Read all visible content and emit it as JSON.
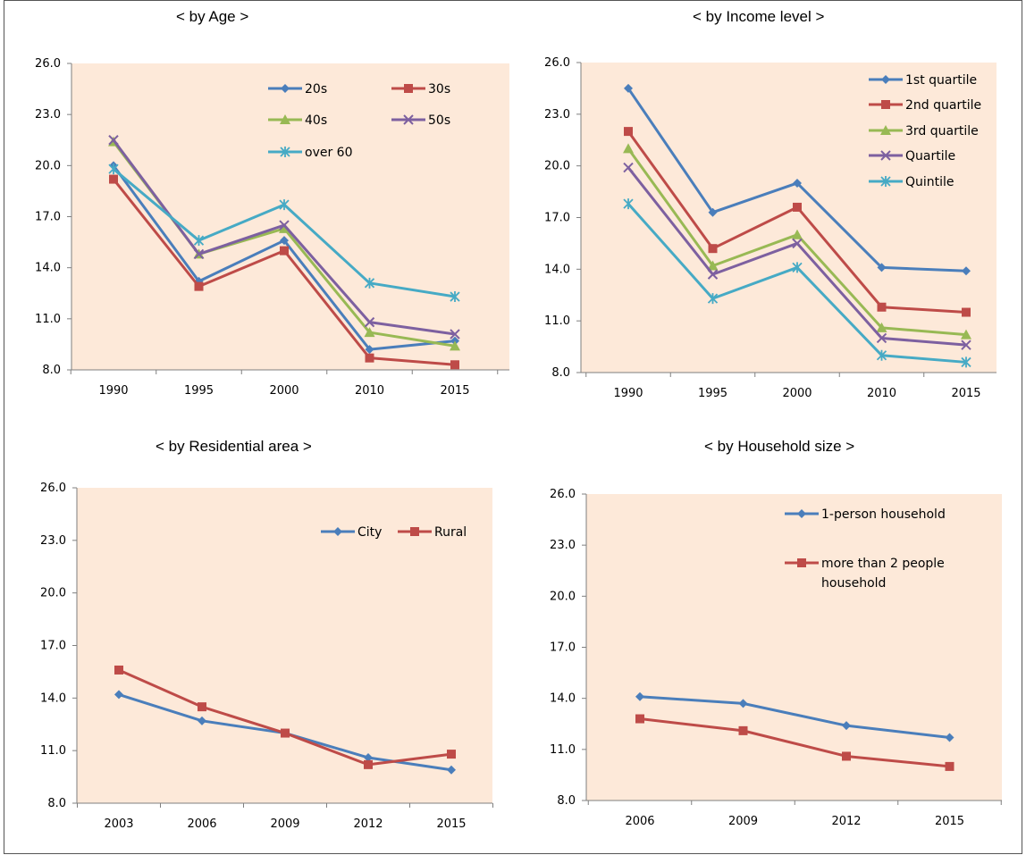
{
  "page": {
    "title": ""
  },
  "chart_data": [
    {
      "type": "line",
      "title": "< by Age >",
      "xlabel": "",
      "ylabel": "",
      "categories": [
        "1990",
        "1995",
        "2000",
        "2010",
        "2015"
      ],
      "ylim": [
        8.0,
        26.0
      ],
      "yticks": [
        "8.0",
        "11.0",
        "14.0",
        "17.0",
        "20.0",
        "23.0",
        "26.0"
      ],
      "grid": false,
      "legend": "top-right",
      "series": [
        {
          "name": "20s",
          "values": [
            20.0,
            13.2,
            15.6,
            9.2,
            9.7
          ],
          "color": "#4a7ebb",
          "marker": "diamond"
        },
        {
          "name": "30s",
          "values": [
            19.2,
            12.9,
            15.0,
            8.7,
            8.3
          ],
          "color": "#be4b48",
          "marker": "square"
        },
        {
          "name": "40s",
          "values": [
            21.4,
            14.8,
            16.3,
            10.2,
            9.4
          ],
          "color": "#98b954",
          "marker": "triangle"
        },
        {
          "name": "50s",
          "values": [
            21.5,
            14.8,
            16.5,
            10.8,
            10.1
          ],
          "color": "#7d60a0",
          "marker": "x"
        },
        {
          "name": "over 60",
          "values": [
            19.8,
            15.6,
            17.7,
            13.1,
            12.3
          ],
          "color": "#46aac5",
          "marker": "star"
        }
      ]
    },
    {
      "type": "line",
      "title": "< by Income level >",
      "xlabel": "",
      "ylabel": "",
      "categories": [
        "1990",
        "1995",
        "2000",
        "2010",
        "2015"
      ],
      "ylim": [
        8.0,
        26.0
      ],
      "yticks": [
        "8.0",
        "11.0",
        "14.0",
        "17.0",
        "20.0",
        "23.0",
        "26.0"
      ],
      "grid": false,
      "legend": "top-right",
      "series": [
        {
          "name": "1st quartile",
          "values": [
            24.5,
            17.3,
            19.0,
            14.1,
            13.9
          ],
          "color": "#4a7ebb",
          "marker": "diamond"
        },
        {
          "name": "2nd quartile",
          "values": [
            22.0,
            15.2,
            17.6,
            11.8,
            11.5
          ],
          "color": "#be4b48",
          "marker": "square"
        },
        {
          "name": "3rd quartile",
          "values": [
            21.0,
            14.2,
            16.0,
            10.6,
            10.2
          ],
          "color": "#98b954",
          "marker": "triangle"
        },
        {
          "name": "Quartile",
          "values": [
            19.9,
            13.7,
            15.5,
            10.0,
            9.6
          ],
          "color": "#7d60a0",
          "marker": "x"
        },
        {
          "name": "Quintile",
          "values": [
            17.8,
            12.3,
            14.1,
            9.0,
            8.6
          ],
          "color": "#46aac5",
          "marker": "star"
        }
      ]
    },
    {
      "type": "line",
      "title": "< by Residential area >",
      "xlabel": "",
      "ylabel": "",
      "categories": [
        "2003",
        "2006",
        "2009",
        "2012",
        "2015"
      ],
      "ylim": [
        8.0,
        26.0
      ],
      "yticks": [
        "8.0",
        "11.0",
        "14.0",
        "17.0",
        "20.0",
        "23.0",
        "26.0"
      ],
      "grid": false,
      "legend": "top-right",
      "series": [
        {
          "name": "City",
          "values": [
            14.2,
            12.7,
            12.0,
            10.6,
            9.9
          ],
          "color": "#4a7ebb",
          "marker": "diamond"
        },
        {
          "name": "Rural",
          "values": [
            15.6,
            13.5,
            12.0,
            10.2,
            10.8
          ],
          "color": "#be4b48",
          "marker": "square"
        }
      ]
    },
    {
      "type": "line",
      "title": "< by Household size >",
      "xlabel": "",
      "ylabel": "",
      "categories": [
        "2006",
        "2009",
        "2012",
        "2015"
      ],
      "ylim": [
        8.0,
        26.0
      ],
      "yticks": [
        "8.0",
        "11.0",
        "14.0",
        "17.0",
        "20.0",
        "23.0",
        "26.0"
      ],
      "grid": false,
      "legend": "top-right",
      "series": [
        {
          "name": "1-person household",
          "values": [
            14.1,
            13.7,
            12.4,
            11.7
          ],
          "color": "#4a7ebb",
          "marker": "diamond"
        },
        {
          "name": "more than 2 people household",
          "values": [
            12.8,
            12.1,
            10.6,
            10.0
          ],
          "color": "#be4b48",
          "marker": "square"
        }
      ]
    }
  ],
  "colors": {
    "plot_background": "#fde9d9",
    "axis": "#7f7f7f"
  }
}
